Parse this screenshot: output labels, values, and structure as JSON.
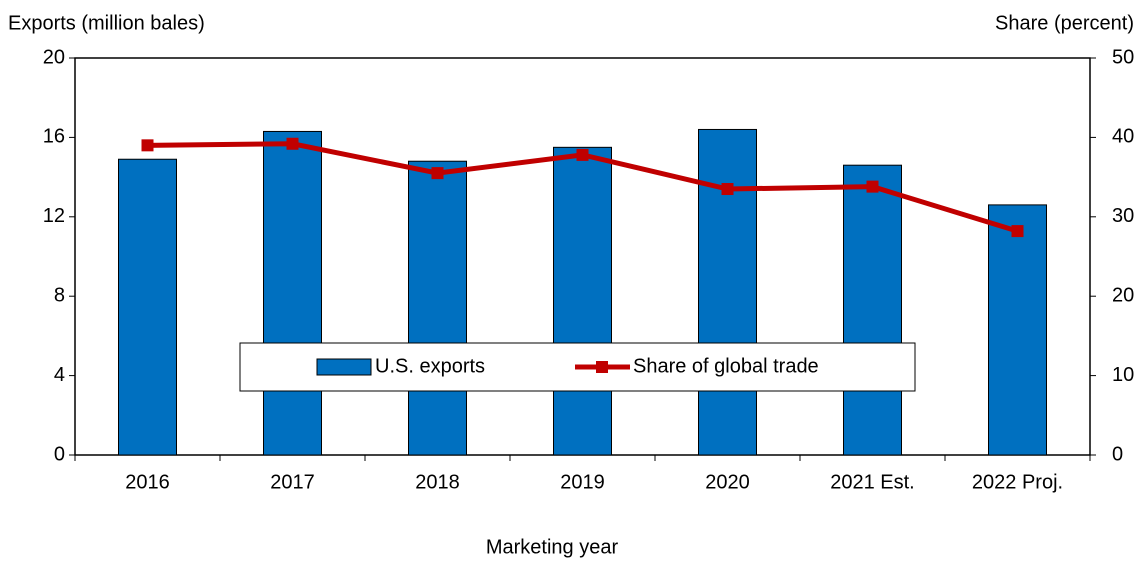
{
  "chart_data": {
    "type": "bar-line",
    "y_label": "Exports (million bales)",
    "y2_label": "Share (percent)",
    "x_label": "Marketing year",
    "categories": [
      "2016",
      "2017",
      "2018",
      "2019",
      "2020",
      "2021 Est.",
      "2022 Proj."
    ],
    "series": [
      {
        "name": "U.S. exports",
        "type": "bar",
        "color": "#0070c0",
        "values": [
          14.9,
          16.3,
          14.8,
          15.5,
          16.4,
          14.6,
          12.6
        ]
      },
      {
        "name": "Share of global trade",
        "type": "line",
        "axis": "y2",
        "color": "#c00000",
        "values": [
          39.0,
          39.2,
          35.5,
          37.8,
          33.5,
          33.8,
          28.2
        ]
      }
    ],
    "ylim": [
      0,
      20
    ],
    "yticks": [
      0,
      4,
      8,
      12,
      16,
      20
    ],
    "y2lim": [
      0,
      50
    ],
    "y2ticks": [
      0,
      10,
      20,
      30,
      40,
      50
    ],
    "legend": "center"
  }
}
